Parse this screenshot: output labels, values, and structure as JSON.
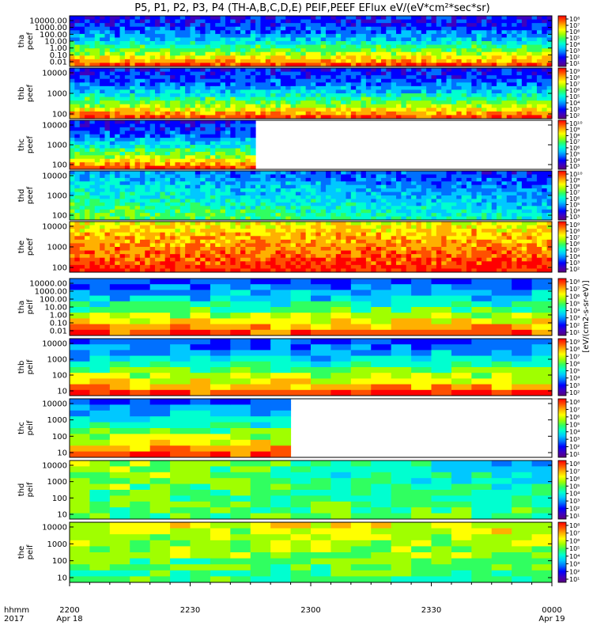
{
  "title": "P5, P1, P2, P3, P4 (TH-A,B,C,D,E) PEIF,PEEF EFlux eV/(eV*cm²*sec*sr)",
  "colorbar_label": "[eV/(cm2-s-sr-eV)]",
  "time_axis": {
    "row1_label": "hhmm",
    "row2_label": "2017",
    "ticks": [
      {
        "value": "2200",
        "date": "Apr 18"
      },
      {
        "value": "2230",
        "date": ""
      },
      {
        "value": "2300",
        "date": ""
      },
      {
        "value": "2330",
        "date": ""
      },
      {
        "value": "0000",
        "date": "Apr 19"
      }
    ]
  },
  "chart_data": {
    "type": "heatmap",
    "x_range": [
      "2017-04-18 22:00",
      "2017-04-19 00:00"
    ],
    "panels": [
      {
        "probe": "tha",
        "product": "peef",
        "y_ticks": [
          "10000.00",
          "1000.00",
          "100.00",
          "10.00",
          "1.00",
          "0.10",
          "0.01"
        ],
        "log": true,
        "cbar_ticks": [
          "10⁸",
          "10⁷",
          "10⁶",
          "10⁵",
          "10⁴",
          "10³",
          "10²",
          "10¹"
        ],
        "data_end": 1.0
      },
      {
        "probe": "thb",
        "product": "peef",
        "y_ticks": [
          "10000",
          "1000",
          "100"
        ],
        "log": true,
        "cbar_ticks": [
          "10⁹",
          "10⁸",
          "10⁷",
          "10⁶",
          "10⁵",
          "10⁴",
          "10³",
          "10²"
        ],
        "data_end": 1.0
      },
      {
        "probe": "thc",
        "product": "peef",
        "y_ticks": [
          "10000",
          "1000",
          "100"
        ],
        "log": true,
        "cbar_ticks": [
          "10¹⁰",
          "10⁹",
          "10⁸",
          "10⁷",
          "10⁶",
          "10⁵",
          "10⁴",
          "10³"
        ],
        "data_end": 0.39
      },
      {
        "probe": "thd",
        "product": "peef",
        "y_ticks": [
          "10000",
          "1000",
          "100"
        ],
        "log": true,
        "cbar_ticks": [
          "10¹⁰",
          "10⁹",
          "10⁸",
          "10⁷",
          "10⁶",
          "10⁵",
          "10⁴",
          "10³"
        ],
        "data_end": 1.0
      },
      {
        "probe": "the",
        "product": "peef",
        "y_ticks": [
          "10000",
          "1000",
          "100"
        ],
        "log": true,
        "cbar_ticks": [
          "10⁹",
          "10⁸",
          "10⁷",
          "10⁶",
          "10⁵",
          "10⁴",
          "10³",
          "10²"
        ],
        "data_end": 1.0
      },
      {
        "probe": "tha",
        "product": "peif",
        "y_ticks": [
          "10000.00",
          "1000.00",
          "100.00",
          "10.00",
          "1.00",
          "0.10",
          "0.01"
        ],
        "log": true,
        "cbar_ticks": [
          "10⁸",
          "10⁷",
          "10⁶",
          "10⁵",
          "10⁴",
          "10³",
          "10²",
          "10¹"
        ],
        "data_end": 1.0
      },
      {
        "probe": "thb",
        "product": "peif",
        "y_ticks": [
          "10000",
          "1000",
          "100",
          "10"
        ],
        "log": true,
        "cbar_ticks": [
          "10⁹",
          "10⁸",
          "10⁷",
          "10⁶",
          "10⁵",
          "10⁴",
          "10³",
          "10²"
        ],
        "data_end": 0.98
      },
      {
        "probe": "thc",
        "product": "peif",
        "y_ticks": [
          "10000",
          "1000",
          "100",
          "10"
        ],
        "log": true,
        "cbar_ticks": [
          "10⁸",
          "10⁷",
          "10⁶",
          "10⁵",
          "10⁴",
          "10³",
          "10²",
          "10¹"
        ],
        "data_end": 0.45
      },
      {
        "probe": "thd",
        "product": "peif",
        "y_ticks": [
          "10000",
          "1000",
          "100",
          "10"
        ],
        "log": true,
        "cbar_ticks": [
          "10⁸",
          "10⁷",
          "10⁶",
          "10⁵",
          "10⁴",
          "10³",
          "10²",
          "10¹"
        ],
        "data_end": 1.0
      },
      {
        "probe": "the",
        "product": "peif",
        "y_ticks": [
          "10000",
          "1000",
          "100",
          "10"
        ],
        "log": true,
        "cbar_ticks": [
          "10⁸",
          "10⁷",
          "10⁶",
          "10⁵",
          "10⁴",
          "10³",
          "10²",
          "10¹"
        ],
        "data_end": 1.0
      }
    ]
  }
}
